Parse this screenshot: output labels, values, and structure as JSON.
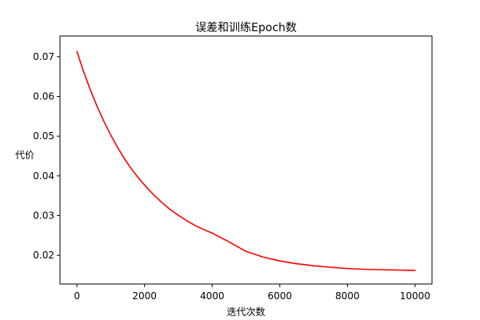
{
  "chart_data": {
    "type": "line",
    "title": "误差和训练Epoch数",
    "xlabel": "迭代次数",
    "ylabel": "代价",
    "xlim": [
      -500,
      10500
    ],
    "ylim": [
      0.0128,
      0.0752
    ],
    "xticks": [
      0,
      2000,
      4000,
      6000,
      8000,
      10000
    ],
    "xtick_labels": [
      "0",
      "2000",
      "4000",
      "6000",
      "8000",
      "10000"
    ],
    "yticks": [
      0.02,
      0.03,
      0.04,
      0.05,
      0.06,
      0.07
    ],
    "ytick_labels": [
      "0.02",
      "0.03",
      "0.04",
      "0.05",
      "0.06",
      "0.07"
    ],
    "grid": false,
    "legend": "none",
    "series": [
      {
        "color": "#ff0000",
        "x": [
          0,
          200,
          400,
          600,
          800,
          1000,
          1200,
          1400,
          1600,
          1800,
          2000,
          2250,
          2500,
          2750,
          3000,
          3250,
          3500,
          3750,
          4000,
          4500,
          5000,
          5500,
          6000,
          6500,
          7000,
          7500,
          8000,
          8500,
          9000,
          9500,
          10000
        ],
        "y": [
          0.0713,
          0.0662,
          0.0616,
          0.0574,
          0.0537,
          0.0503,
          0.0472,
          0.0444,
          0.0419,
          0.0397,
          0.0377,
          0.0354,
          0.0334,
          0.0316,
          0.0301,
          0.0287,
          0.0275,
          0.0265,
          0.0256,
          0.0234,
          0.021,
          0.0196,
          0.0186,
          0.0179,
          0.0174,
          0.017,
          0.0167,
          0.0165,
          0.0164,
          0.0163,
          0.0162
        ]
      }
    ]
  }
}
